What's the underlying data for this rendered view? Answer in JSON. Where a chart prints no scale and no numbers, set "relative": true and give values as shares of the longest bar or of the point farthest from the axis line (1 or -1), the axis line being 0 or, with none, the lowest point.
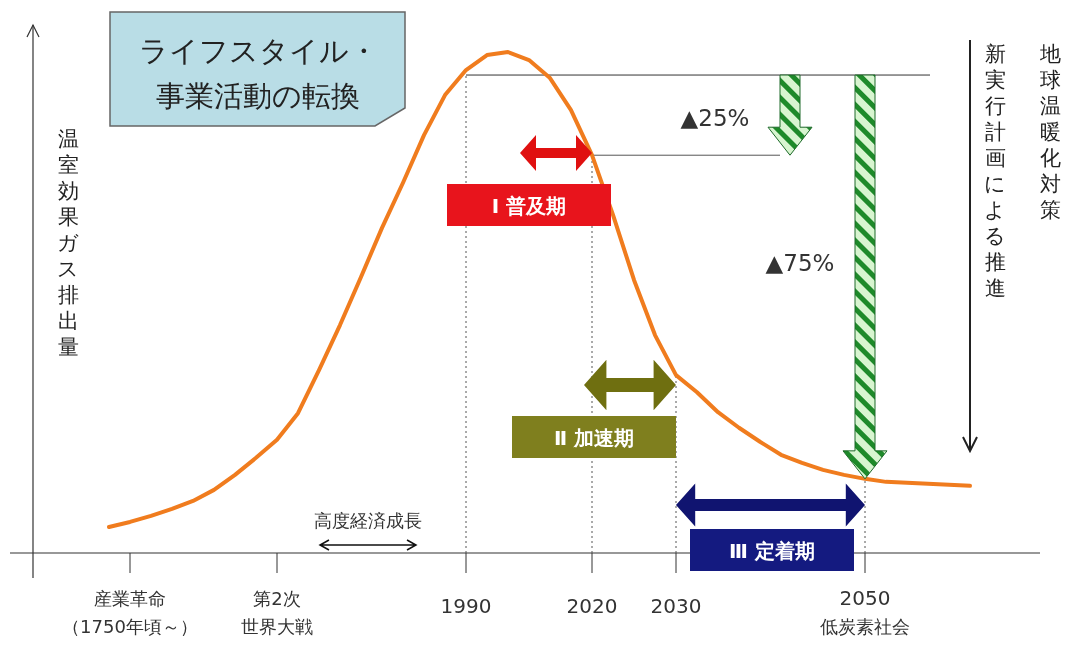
{
  "chart_data": {
    "type": "line",
    "relative": true,
    "ylabel": "温室効果ガス排出量",
    "categories": [
      null,
      "産業革命",
      null,
      null,
      null,
      null,
      null,
      null,
      "第2次",
      null,
      null,
      null,
      null,
      null,
      null,
      null,
      null,
      "1990",
      null,
      null,
      null,
      null,
      null,
      "2020",
      null,
      null,
      null,
      "2030",
      null,
      null,
      null,
      null,
      null,
      null,
      null,
      null,
      "2050",
      null,
      null,
      null,
      null,
      null
    ],
    "series": [
      {
        "color": "#f07c1e",
        "values": [
          0.052,
          0.062,
          0.074,
          0.088,
          0.104,
          0.126,
          0.156,
          0.19,
          0.226,
          0.279,
          0.365,
          0.455,
          0.551,
          0.649,
          0.739,
          0.834,
          0.914,
          0.964,
          0.994,
          1.0,
          0.984,
          0.948,
          0.884,
          0.794,
          0.675,
          0.545,
          0.435,
          0.355,
          0.321,
          0.281,
          0.25,
          0.222,
          0.196,
          0.18,
          0.166,
          0.156,
          0.148,
          0.142,
          0.14,
          0.138,
          0.136,
          0.134
        ]
      }
    ],
    "grid": false,
    "ref_lines": [
      {
        "axis": "x",
        "value": "1990",
        "line_style": "dotted",
        "color": "#555555"
      },
      {
        "axis": "x",
        "value": "2020",
        "line_style": "dotted",
        "color": "#555555"
      },
      {
        "axis": "x",
        "value": "2030",
        "line_style": "dotted",
        "color": "#555555"
      },
      {
        "axis": "x",
        "value": "2050",
        "line_style": "dotted",
        "color": "#555555"
      },
      {
        "axis": "y",
        "value": 0.954,
        "line_style": "solid",
        "color": "#333333"
      },
      {
        "axis": "y",
        "value": 0.794,
        "line_style": "solid",
        "color": "#555555"
      }
    ],
    "annotations": [
      "ライフスタイル・",
      "事業活動の転換",
      "▲25%",
      "▲75%",
      "Ⅰ 普及期",
      "Ⅱ 加速期",
      "Ⅲ 定着期",
      "高度経済成長",
      "地球温暖化対策",
      "新実行計画による推進",
      "（1750年頃～）",
      "世界大戦",
      "低炭素社会"
    ]
  }
}
